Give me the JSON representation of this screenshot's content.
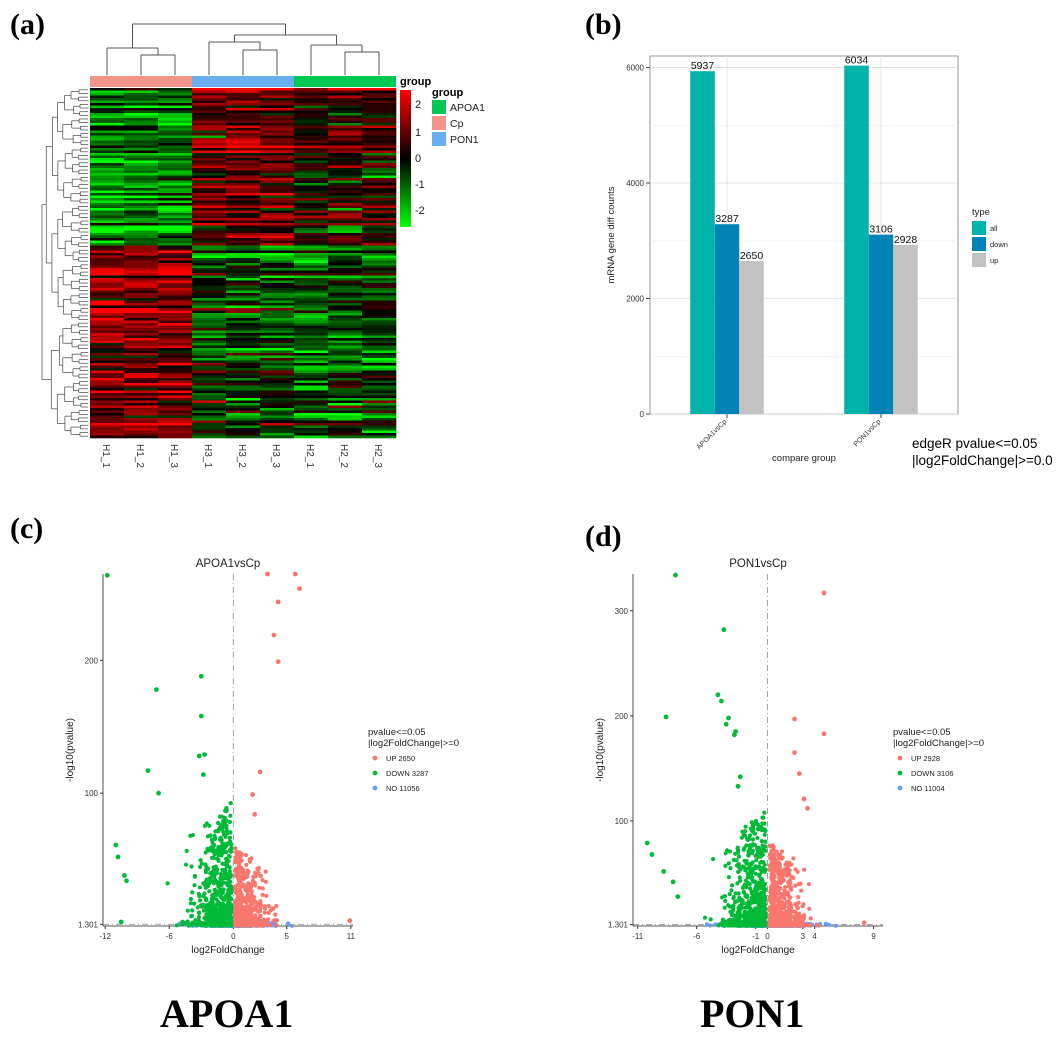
{
  "panel_labels": {
    "a": "(a)",
    "b": "(b)",
    "c": "(c)",
    "d": "(d)"
  },
  "captions": {
    "left": "APOA1",
    "right": "PON1"
  },
  "heatmap": {
    "columns": [
      "H1_1",
      "H1_2",
      "H1_3",
      "H3_1",
      "H3_2",
      "H3_3",
      "H2_1",
      "H2_2",
      "H2_3"
    ],
    "group_title": "group",
    "legend_title": "group",
    "groups": [
      {
        "name": "APOA1",
        "color": "#00c853"
      },
      {
        "name": "Cp",
        "color": "#f4938a"
      },
      {
        "name": "PON1",
        "color": "#6aaef2"
      }
    ],
    "column_group_colors": [
      "#f4938a",
      "#6aaef2",
      "#00c853"
    ],
    "scale_ticks": [
      "2",
      "1",
      "0",
      "-1",
      "-2"
    ],
    "color_low": "#00ff00",
    "color_mid": "#000000",
    "color_high": "#ff0000"
  },
  "note": {
    "line1": "edgeR pvalue<=0.05",
    "line2": "|log2FoldChange|>=0.0"
  },
  "chart_data": [
    {
      "type": "bar",
      "categories": [
        "APOA1vsCp",
        "PON1vsCp"
      ],
      "series": [
        {
          "name": "all",
          "values": [
            5937,
            6034
          ],
          "color": "#00b3aa"
        },
        {
          "name": "down",
          "values": [
            3287,
            3106
          ],
          "color": "#0084b5"
        },
        {
          "name": "up",
          "values": [
            2650,
            2928
          ],
          "color": "#c2c2c2"
        }
      ],
      "xlabel": "compare group",
      "ylabel": "mRNA gene diff counts",
      "ylim": [
        0,
        6200
      ],
      "yticks": [
        0,
        2000,
        4000,
        6000
      ],
      "legend_title": "type",
      "legend_position": "right",
      "grid": true
    },
    {
      "type": "scatter",
      "title": "APOA1vsCp",
      "xlabel": "log2FoldChange",
      "ylabel": "-log10(pvalue)",
      "xticks": [
        -12,
        -6,
        0,
        5,
        11
      ],
      "yticks": [
        1.301,
        100,
        200
      ],
      "xlim": [
        -12.2,
        11.2
      ],
      "ylim": [
        0,
        265
      ],
      "legend_title_1": "pvalue<=0.05",
      "legend_title_2": "|log2FoldChange|>=0",
      "legend": [
        {
          "label": "UP 2650",
          "color": "#f8766d"
        },
        {
          "label": "DOWN 3287",
          "color": "#00ba38"
        },
        {
          "label": "NO 11056",
          "color": "#619cff"
        }
      ],
      "highlight_points": [
        [
          -11.8,
          264
        ],
        [
          -7.2,
          178
        ],
        [
          -3.0,
          188
        ],
        [
          -3.0,
          158
        ],
        [
          -8.0,
          117
        ],
        [
          -7.0,
          100
        ],
        [
          -11.0,
          61
        ],
        [
          -10.8,
          52
        ],
        [
          -10.2,
          38
        ],
        [
          -10.0,
          34
        ],
        [
          -3.2,
          128
        ],
        [
          -2.7,
          129
        ],
        [
          -2.8,
          114
        ],
        [
          3.2,
          265
        ],
        [
          5.8,
          265
        ],
        [
          6.2,
          254
        ],
        [
          4.2,
          244
        ],
        [
          3.8,
          219
        ],
        [
          4.2,
          199
        ],
        [
          2.5,
          116
        ],
        [
          1.8,
          99
        ],
        [
          2.0,
          84
        ],
        [
          10.9,
          4
        ],
        [
          -10.5,
          3
        ]
      ]
    },
    {
      "type": "scatter",
      "title": "PON1vsCp",
      "xlabel": "log2FoldChange",
      "ylabel": "-log10(pvalue)",
      "xticks": [
        -11,
        -6,
        -1,
        0,
        3,
        4,
        9
      ],
      "yticks": [
        1.301,
        100,
        200,
        300
      ],
      "xlim": [
        -11.4,
        9.8
      ],
      "ylim": [
        0,
        335
      ],
      "legend_title_1": "pvalue<=0.05",
      "legend_title_2": "|log2FoldChange|>=0",
      "legend": [
        {
          "label": "UP 2928",
          "color": "#f8766d"
        },
        {
          "label": "DOWN 3106",
          "color": "#00ba38"
        },
        {
          "label": "NO 11004",
          "color": "#619cff"
        }
      ],
      "highlight_points": [
        [
          -7.8,
          334
        ],
        [
          -3.7,
          282
        ],
        [
          -4.2,
          220
        ],
        [
          -3.9,
          214
        ],
        [
          -8.6,
          199
        ],
        [
          -2.7,
          185
        ],
        [
          -2.8,
          182
        ],
        [
          -3.3,
          198
        ],
        [
          -3.5,
          192
        ],
        [
          4.8,
          317
        ],
        [
          2.3,
          197
        ],
        [
          2.3,
          165
        ],
        [
          4.8,
          183
        ],
        [
          2.7,
          145
        ],
        [
          3.1,
          121
        ],
        [
          3.4,
          112
        ],
        [
          -2.3,
          142
        ],
        [
          -2.5,
          133
        ],
        [
          -10.2,
          79
        ],
        [
          -9.8,
          68
        ],
        [
          -8.8,
          52
        ],
        [
          -8.0,
          42
        ],
        [
          -7.6,
          28
        ],
        [
          8.2,
          3
        ]
      ]
    }
  ]
}
